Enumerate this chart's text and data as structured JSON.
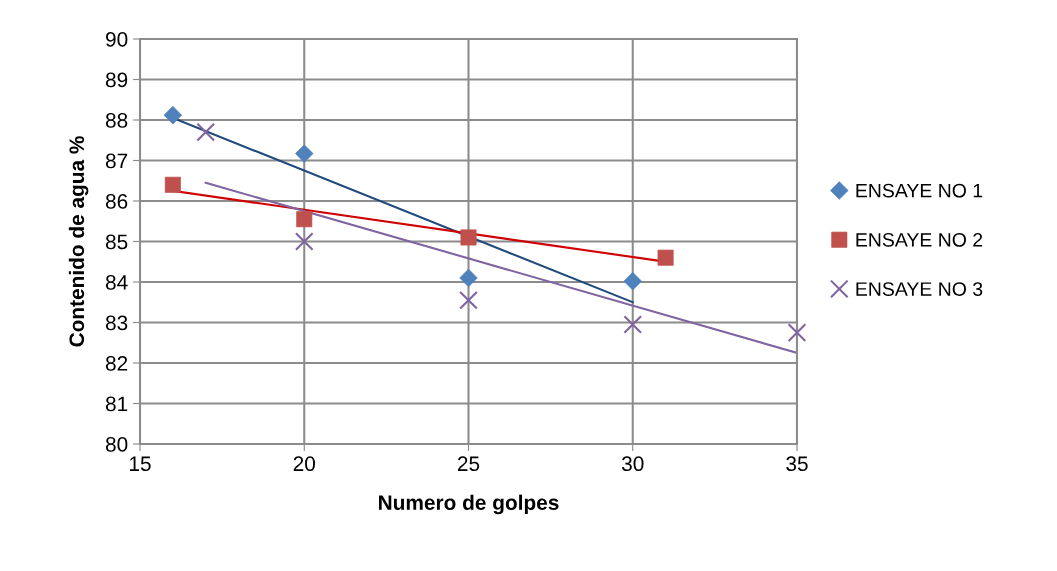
{
  "chart_data": {
    "type": "scatter",
    "xlabel": "Numero de golpes",
    "ylabel": "Contenido de agua %",
    "xlim": [
      15,
      35
    ],
    "xticks": [
      15,
      20,
      25,
      30,
      35
    ],
    "ylim": [
      80,
      90
    ],
    "yticks": [
      80,
      81,
      82,
      83,
      84,
      85,
      86,
      87,
      88,
      89,
      90
    ],
    "grid": true,
    "legend": "right",
    "series": [
      {
        "name": "ENSAYE NO 1",
        "marker": "diamond",
        "color": "#4f81bd",
        "x": [
          16,
          20,
          25,
          30
        ],
        "values": [
          88.12,
          87.17,
          84.1,
          84.02
        ]
      },
      {
        "name": "ENSAYE NO 2",
        "marker": "square",
        "color": "#c0504d",
        "x": [
          16,
          20,
          25,
          31
        ],
        "values": [
          86.4,
          85.55,
          85.1,
          84.6
        ]
      },
      {
        "name": "ENSAYE NO 3",
        "marker": "cross",
        "color": "#8064a2",
        "x": [
          17,
          20,
          25,
          30,
          35
        ],
        "values": [
          87.7,
          85.0,
          83.55,
          82.95,
          82.75
        ]
      },
      {
        "type": "line",
        "marker": "none",
        "color": "#1f497d",
        "x": [
          16,
          30
        ],
        "values": [
          88.05,
          83.5
        ]
      },
      {
        "type": "line",
        "marker": "none",
        "color": "#d00000",
        "x": [
          16,
          31
        ],
        "values": [
          86.25,
          84.5
        ]
      },
      {
        "type": "line",
        "marker": "none",
        "color": "#8064a2",
        "x": [
          17,
          35
        ],
        "values": [
          86.45,
          82.25
        ]
      }
    ]
  }
}
